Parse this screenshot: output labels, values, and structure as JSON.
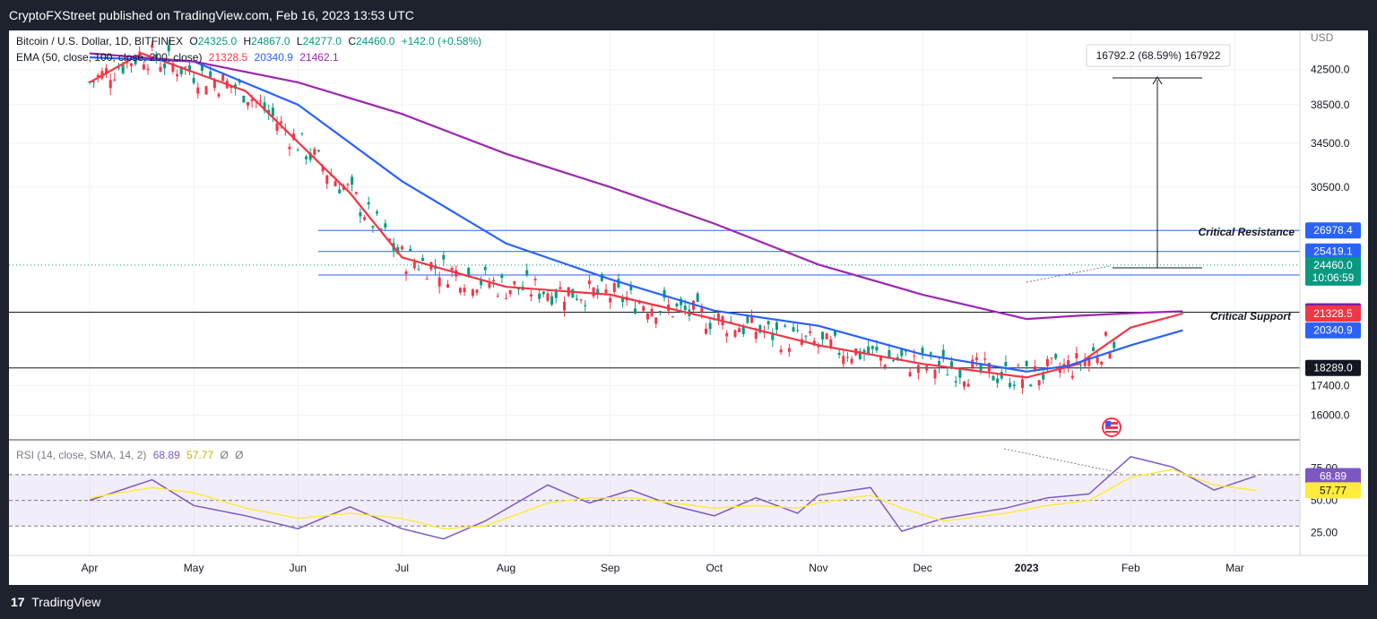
{
  "header": {
    "published": "CryptoFXStreet published on TradingView.com, Feb 16, 2023 13:53 UTC"
  },
  "footer": {
    "logo": "17",
    "brand": "TradingView"
  },
  "legend": {
    "symbol": "Bitcoin / U.S. Dollar, 1D, BITFINEX",
    "o_label": "O",
    "o": "24325.0",
    "h_label": "H",
    "h": "24867.0",
    "l_label": "L",
    "l": "24277.0",
    "c_label": "C",
    "c": "24460.0",
    "change": "+142.0 (+0.58%)",
    "ema_label": "EMA (50, close, 100, close, 200, close)",
    "ema50": "21328.5",
    "ema100": "20340.9",
    "ema200": "21462.1",
    "rsi_label": "RSI (14, close, SMA, 14, 2)",
    "rsi": "68.89",
    "rsi_sma": "57.77",
    "ph1": "Ø",
    "ph2": "Ø"
  },
  "measure_label": "16792.2 (68.59%) 167922",
  "annotations": {
    "resistance": "Critical Resistance",
    "support": "Critical Support"
  },
  "chart_data": [
    {
      "type": "candlestick",
      "x_ticks": [
        "Apr",
        "May",
        "Jun",
        "Jul",
        "Aug",
        "Sep",
        "Oct",
        "Nov",
        "Dec",
        "2023",
        "Feb",
        "Mar",
        "Apr"
      ],
      "y_axis_label": "USD",
      "y_ticks": [
        42500,
        38500,
        34500,
        30500,
        17400,
        16000
      ],
      "y_scale": "log",
      "ylim": [
        15000,
        47000
      ],
      "levels": [
        {
          "value": 26978.4,
          "label": "26978.4",
          "color": "#2962ff"
        },
        {
          "value": 25419.1,
          "label": "25419.1",
          "color": "#2962ff"
        },
        {
          "value": 23782.7,
          "label": "23782.7",
          "color": "#2962ff"
        },
        {
          "value": 21410.8,
          "label": "21410.8",
          "color": "#131722"
        },
        {
          "value": 18289.0,
          "label": "18289.0",
          "color": "#131722"
        }
      ],
      "price_badges": [
        {
          "value": 24460.0,
          "label": "24460.0",
          "sub": "10:06:59",
          "color": "#089981"
        },
        {
          "value": 21462.1,
          "label": "21462.1",
          "color": "#7b1fa2"
        },
        {
          "value": 21328.5,
          "label": "21328.5",
          "color": "#f23645"
        },
        {
          "value": 20340.9,
          "label": "20340.9",
          "color": "#2962ff"
        }
      ],
      "series": [
        {
          "name": "EMA 50",
          "color": "#f23645",
          "points": [
            [
              0,
              41000
            ],
            [
              0.5,
              44500
            ],
            [
              1.5,
              40000
            ],
            [
              2.5,
              30000
            ],
            [
              3,
              25000
            ],
            [
              4,
              23000
            ],
            [
              5,
              22500
            ],
            [
              6,
              21000
            ],
            [
              7,
              19500
            ],
            [
              7.5,
              19000
            ],
            [
              8,
              18500
            ],
            [
              9,
              17800
            ],
            [
              9.5,
              18500
            ],
            [
              10,
              20500
            ],
            [
              10.5,
              21328.5
            ]
          ]
        },
        {
          "name": "EMA 100",
          "color": "#2962ff",
          "points": [
            [
              0,
              44000
            ],
            [
              1,
              43500
            ],
            [
              2,
              38500
            ],
            [
              3,
              31000
            ],
            [
              4,
              26000
            ],
            [
              5,
              23500
            ],
            [
              6,
              21500
            ],
            [
              7,
              20600
            ],
            [
              8,
              19000
            ],
            [
              9,
              18100
            ],
            [
              9.4,
              18400
            ],
            [
              10,
              19500
            ],
            [
              10.5,
              20340.9
            ]
          ]
        },
        {
          "name": "EMA 200",
          "color": "#9c27b0",
          "points": [
            [
              0,
              44500
            ],
            [
              1,
              43500
            ],
            [
              2,
              41000
            ],
            [
              3,
              37500
            ],
            [
              4,
              33500
            ],
            [
              5,
              30500
            ],
            [
              6,
              27500
            ],
            [
              7,
              24500
            ],
            [
              8,
              22500
            ],
            [
              9,
              21000
            ],
            [
              9.5,
              21200
            ],
            [
              10,
              21350
            ],
            [
              10.5,
              21462.1
            ]
          ]
        }
      ]
    },
    {
      "type": "line",
      "name": "RSI",
      "y_ticks": [
        75,
        50,
        25
      ],
      "ylim": [
        10,
        95
      ],
      "band": [
        30,
        70
      ],
      "series": [
        {
          "name": "RSI",
          "color": "#7e57c2",
          "points": [
            [
              0,
              50
            ],
            [
              0.6,
              66
            ],
            [
              1,
              46
            ],
            [
              1.5,
              38
            ],
            [
              2,
              28
            ],
            [
              2.5,
              45
            ],
            [
              3,
              28
            ],
            [
              3.4,
              20
            ],
            [
              3.8,
              34
            ],
            [
              4.4,
              62
            ],
            [
              4.8,
              48
            ],
            [
              5.2,
              58
            ],
            [
              5.6,
              46
            ],
            [
              6,
              38
            ],
            [
              6.4,
              52
            ],
            [
              6.8,
              40
            ],
            [
              7,
              54
            ],
            [
              7.5,
              60
            ],
            [
              7.8,
              26
            ],
            [
              8.2,
              36
            ],
            [
              8.8,
              44
            ],
            [
              9.2,
              52
            ],
            [
              9.6,
              55
            ],
            [
              10,
              84
            ],
            [
              10.4,
              76
            ],
            [
              10.8,
              58
            ],
            [
              11.2,
              68.89
            ]
          ]
        },
        {
          "name": "RSI SMA",
          "color": "#ffeb3b",
          "points": [
            [
              0,
              52
            ],
            [
              0.6,
              60
            ],
            [
              1,
              56
            ],
            [
              1.5,
              44
            ],
            [
              2,
              36
            ],
            [
              2.5,
              40
            ],
            [
              3,
              36
            ],
            [
              3.4,
              28
            ],
            [
              3.8,
              30
            ],
            [
              4.4,
              48
            ],
            [
              4.8,
              52
            ],
            [
              5.2,
              52
            ],
            [
              5.6,
              48
            ],
            [
              6,
              44
            ],
            [
              6.4,
              46
            ],
            [
              6.8,
              44
            ],
            [
              7,
              48
            ],
            [
              7.5,
              54
            ],
            [
              7.8,
              44
            ],
            [
              8.2,
              34
            ],
            [
              8.8,
              40
            ],
            [
              9.2,
              46
            ],
            [
              9.6,
              50
            ],
            [
              10,
              68
            ],
            [
              10.4,
              74
            ],
            [
              10.8,
              62
            ],
            [
              11.2,
              57.77
            ]
          ]
        }
      ],
      "badges": [
        {
          "value": 68.89,
          "label": "68.89",
          "color": "#7e57c2"
        },
        {
          "value": 57.77,
          "label": "57.77",
          "color": "#ffeb3b"
        }
      ]
    }
  ]
}
